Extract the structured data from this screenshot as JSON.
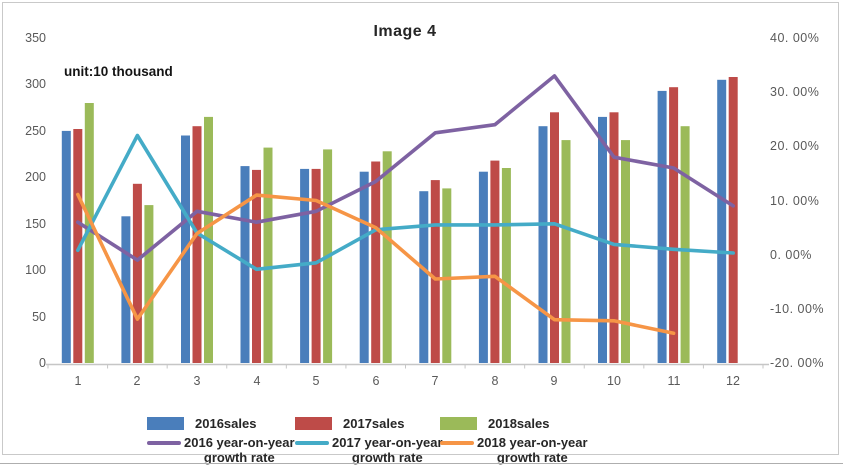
{
  "chart_data": {
    "type": "combo-bar-line",
    "title": "Image 4",
    "unit_label": "unit:10 thousand",
    "categories": [
      "1",
      "2",
      "3",
      "4",
      "5",
      "6",
      "7",
      "8",
      "9",
      "10",
      "11",
      "12"
    ],
    "bar_series": [
      {
        "name": "2016sales",
        "color": "#4a7ebb",
        "values": [
          250,
          158,
          245,
          212,
          209,
          206,
          185,
          206,
          255,
          265,
          293,
          305
        ]
      },
      {
        "name": "2017sales",
        "color": "#be4b48",
        "values": [
          252,
          193,
          255,
          208,
          209,
          217,
          197,
          218,
          270,
          270,
          297,
          308
        ]
      },
      {
        "name": "2018sales",
        "color": "#9bba59",
        "values": [
          280,
          170,
          265,
          232,
          230,
          228,
          188,
          210,
          240,
          240,
          255,
          null
        ]
      }
    ],
    "line_series": [
      {
        "name": "2016 year-on-year growth rate",
        "legend_lines": [
          "2016 year-on-year",
          "growth rate"
        ],
        "color": "#7e62a2",
        "values_pct": [
          6,
          -1,
          8,
          6,
          8,
          13.5,
          22.5,
          24,
          33,
          18,
          16,
          9
        ]
      },
      {
        "name": "2017 year-on-year growth rate",
        "legend_lines": [
          "2017 year-on-year",
          "growth rate"
        ],
        "color": "#44abc7",
        "values_pct": [
          0.8,
          22,
          4,
          -2.7,
          -1.5,
          4.6,
          5.5,
          5.5,
          5.7,
          1.9,
          1,
          0.3
        ]
      },
      {
        "name": "2018 year-on-year growth rate",
        "legend_lines": [
          "2018 year-on-year",
          "growth rate"
        ],
        "color": "#f69546",
        "values_pct": [
          11.1,
          -11.9,
          3.9,
          11,
          10,
          5,
          -4.5,
          -4,
          -12,
          -12.2,
          -14.5,
          null
        ]
      }
    ],
    "left_axis": {
      "min": 0,
      "max": 350,
      "ticks": [
        "350",
        "300",
        "250",
        "200",
        "150",
        "100",
        "50",
        "0"
      ]
    },
    "right_axis": {
      "min": -20,
      "max": 40,
      "ticks": [
        "40. 00%",
        "30. 00%",
        "20. 00%",
        "10. 00%",
        "0. 00%",
        "-10. 00%",
        "-20. 00%"
      ]
    },
    "axis_color": "#c6c6c6",
    "legend_column_x": [
      147,
      295,
      440
    ]
  }
}
